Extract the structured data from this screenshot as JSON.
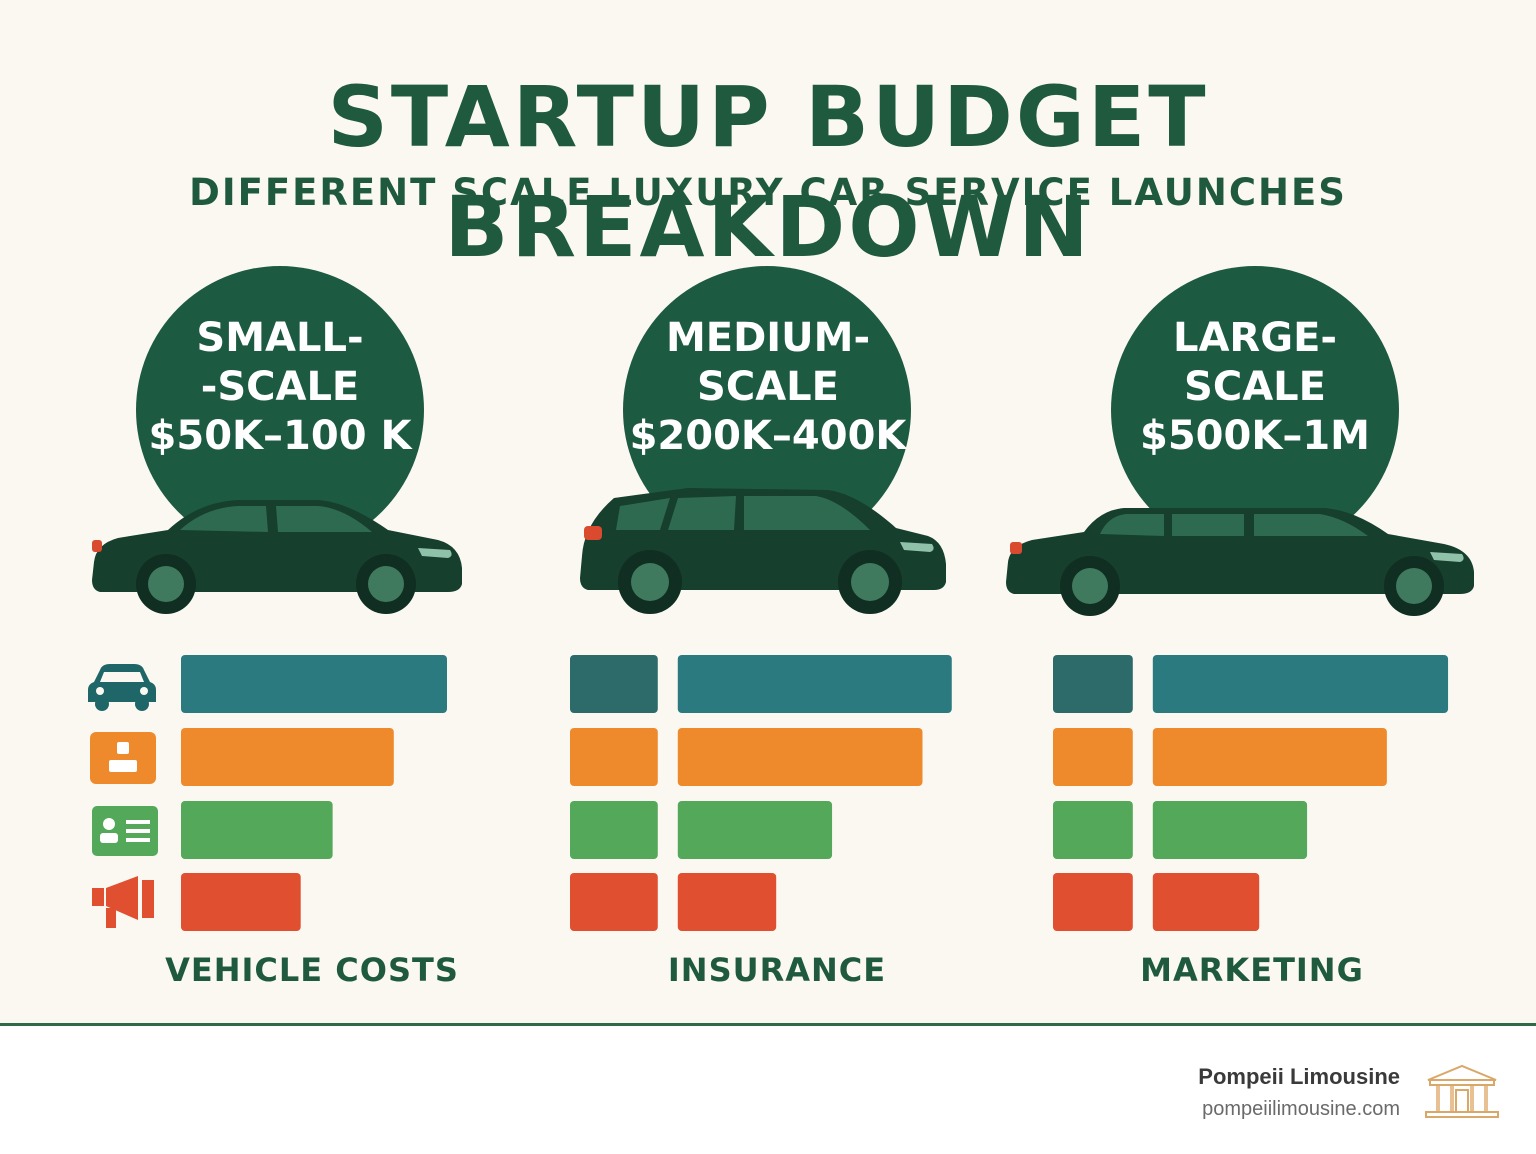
{
  "title": "STARTUP BUDGET BREAKDOWN",
  "subtitle": "DIFFERENT SCALE LUXURY CAR SERVICE LAUNCHES",
  "scales": [
    {
      "name_lines": [
        "SMALL-",
        "-SCALE"
      ],
      "budget": "$50K–100 K",
      "vehicle": "sedan"
    },
    {
      "name_lines": [
        "MEDIUM-",
        "SCALE"
      ],
      "budget": "$200K–400K",
      "vehicle": "suv"
    },
    {
      "name_lines": [
        "LARGE-",
        "SCALE"
      ],
      "budget": "$500K–1M",
      "vehicle": "limousine"
    }
  ],
  "category_labels": [
    "VEHICLE COSTS",
    "INSURANCE",
    "MARKETING"
  ],
  "icons": [
    "car-icon",
    "driver-badge-icon",
    "id-card-icon",
    "megaphone-icon"
  ],
  "colors": {
    "dark_green": "#1d5a42",
    "teal": "#2b7a80",
    "orange": "#ef8a2c",
    "green": "#53a85a",
    "red": "#e04f30",
    "text_green": "#1f5a3f"
  },
  "chart_data": {
    "type": "bar",
    "orientation": "horizontal",
    "axis_labels_visible": false,
    "note_values": "relative bar lengths, no printed scale",
    "panels": [
      {
        "scale": "Small-Scale",
        "series": [
          {
            "color": "#2b7a80",
            "values": [
              1.0
            ]
          },
          {
            "color": "#ef8a2c",
            "values": [
              0.8
            ]
          },
          {
            "color": "#53a85a",
            "values": [
              0.57
            ]
          },
          {
            "color": "#e04f30",
            "values": [
              0.45
            ]
          }
        ]
      },
      {
        "scale": "Medium-Scale",
        "series": [
          {
            "color": "#2b7a80",
            "values": [
              0.33,
              1.03
            ]
          },
          {
            "color": "#ef8a2c",
            "values": [
              0.33,
              0.92
            ]
          },
          {
            "color": "#53a85a",
            "values": [
              0.33,
              0.58
            ]
          },
          {
            "color": "#e04f30",
            "values": [
              0.33,
              0.37
            ]
          }
        ]
      },
      {
        "scale": "Large-Scale",
        "series": [
          {
            "color": "#2b7a80",
            "values": [
              0.3,
              1.11
            ]
          },
          {
            "color": "#ef8a2c",
            "values": [
              0.3,
              0.88
            ]
          },
          {
            "color": "#53a85a",
            "values": [
              0.3,
              0.58
            ]
          },
          {
            "color": "#e04f30",
            "values": [
              0.3,
              0.4
            ]
          }
        ]
      }
    ]
  },
  "footer": {
    "brand": "Pompeii Limousine",
    "url": "pompeiilimousine.com",
    "logo": "pompeii-temple-logo"
  }
}
